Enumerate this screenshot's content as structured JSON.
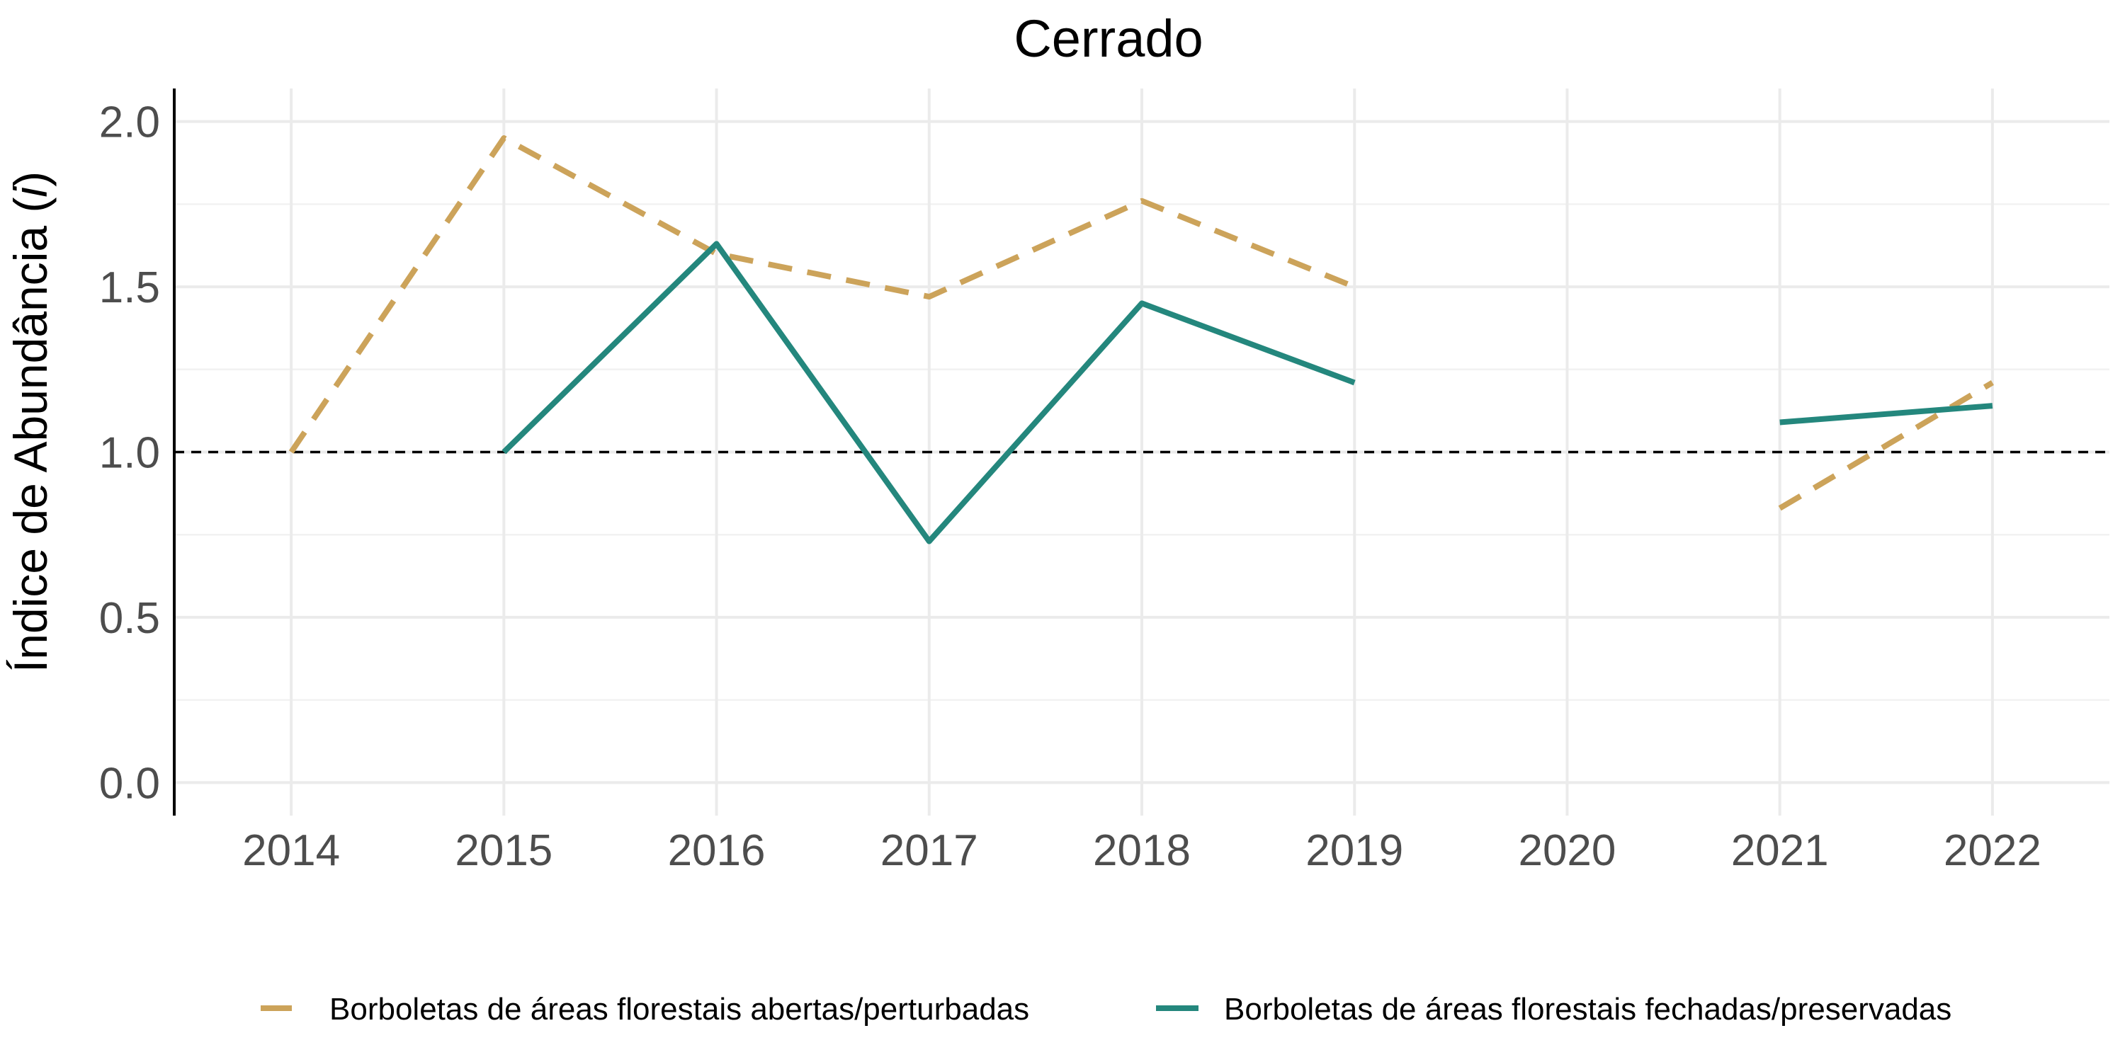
{
  "chart_data": {
    "type": "line",
    "title": "Cerrado",
    "xlabel": "",
    "ylabel_main": "Índice de Abundância (",
    "ylabel_italic": "i",
    "ylabel_close": ")",
    "x": [
      2014,
      2015,
      2016,
      2017,
      2018,
      2019,
      2020,
      2021,
      2022
    ],
    "x_ticks": [
      "2014",
      "2015",
      "2016",
      "2017",
      "2018",
      "2019",
      "2020",
      "2021",
      "2022"
    ],
    "y_ticks": [
      "0.0",
      "0.5",
      "1.0",
      "1.5",
      "2.0"
    ],
    "y_tick_values": [
      0.0,
      0.5,
      1.0,
      1.5,
      2.0
    ],
    "xlim": [
      2013.45,
      2022.55
    ],
    "ylim": [
      -0.1,
      2.1
    ],
    "grid": true,
    "legend_position": "bottom",
    "reference_line": {
      "y": 1.0,
      "style": "dashed",
      "color": "#000000"
    },
    "series": [
      {
        "name": "Borboletas de áreas florestais abertas/perturbadas",
        "color": "#cca35a",
        "style": "dashed",
        "values": [
          1.0,
          1.95,
          1.6,
          1.47,
          1.76,
          1.5,
          null,
          0.83,
          1.21
        ]
      },
      {
        "name": "Borboletas de áreas florestais fechadas/preservadas",
        "color": "#24877d",
        "style": "solid",
        "values": [
          null,
          1.0,
          1.63,
          0.73,
          1.45,
          1.21,
          null,
          1.09,
          1.14
        ]
      }
    ]
  }
}
